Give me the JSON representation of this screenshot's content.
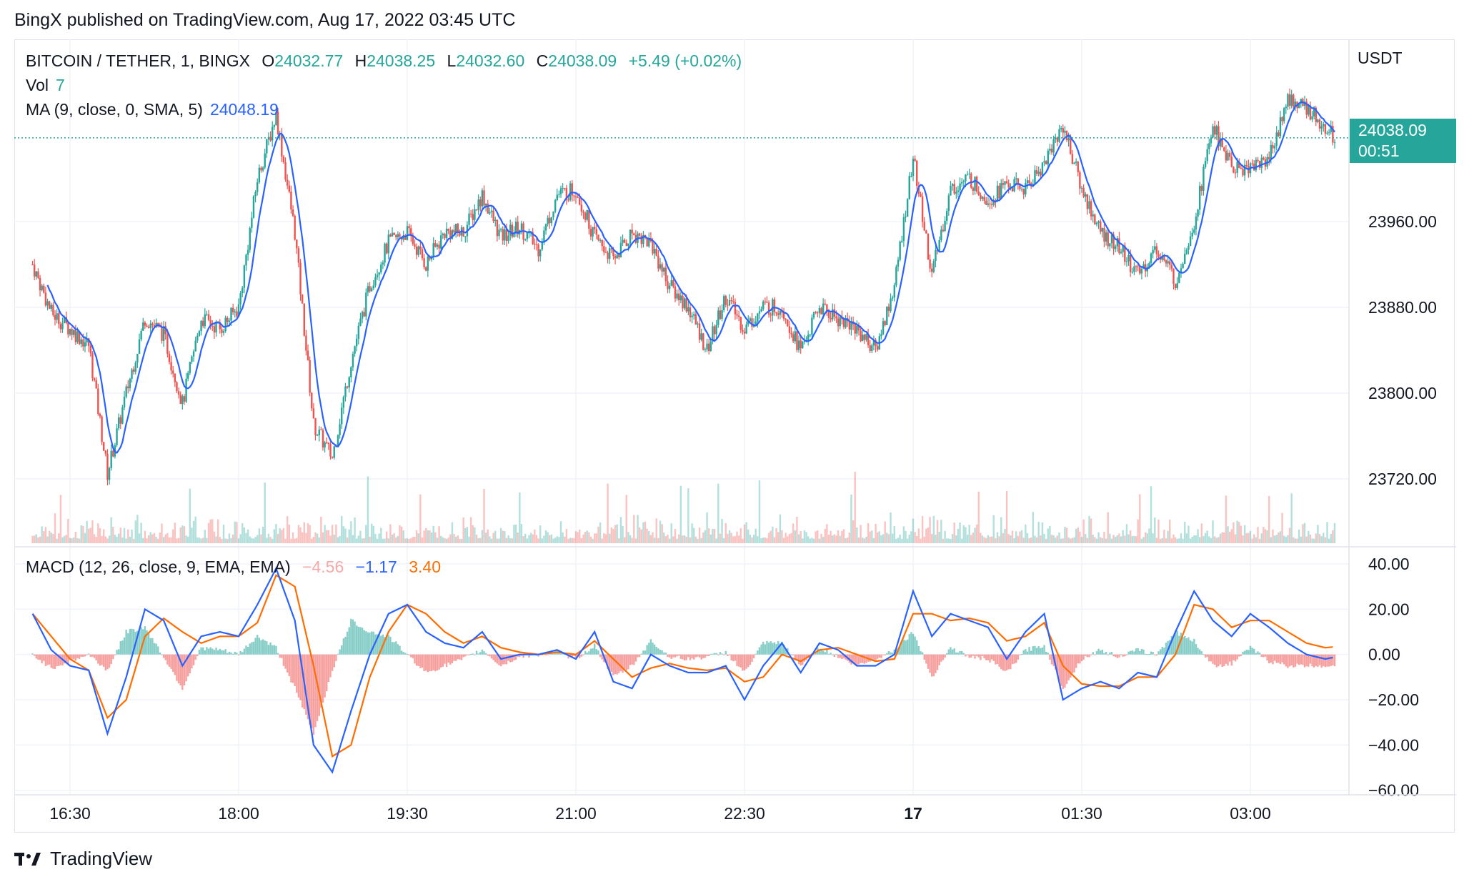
{
  "header": {
    "published": "BingX published on TradingView.com, Aug 17, 2022 03:45 UTC"
  },
  "legend": {
    "symbol": "BITCOIN / TETHER, 1, BINGX",
    "o_label": "O",
    "o_value": "24032.77",
    "h_label": "H",
    "h_value": "24038.25",
    "l_label": "L",
    "l_value": "24032.60",
    "c_label": "C",
    "c_value": "24038.09",
    "change": "+5.49 (+0.02%)",
    "vol_label": "Vol",
    "vol_value": "7",
    "ma_label": "MA (9, close, 0, SMA, 5)",
    "ma_value": "24048.19",
    "macd_label": "MACD (12, 26, close, 9, EMA, EMA)",
    "macd_hist": "−4.56",
    "macd_line": "−1.17",
    "macd_signal": "3.40"
  },
  "price_axis": {
    "unit": "USDT",
    "last_price": "24038.09",
    "countdown": "00:51"
  },
  "footer": {
    "brand": "TradingView"
  },
  "colors": {
    "up": "#26a69a",
    "down": "#ef5350",
    "ma": "#2962ff",
    "macd": "#2962ff",
    "signal": "#ff6d00",
    "grid": "#f0f3fa"
  },
  "chart_data": [
    {
      "type": "candlestick",
      "title": "BITCOIN / TETHER, 1, BINGX",
      "ylim": [
        23660,
        24130
      ],
      "y_ticks": [
        "23720.00",
        "23800.00",
        "23880.00",
        "23960.00"
      ],
      "x_ticks": [
        "16:30",
        "18:00",
        "19:30",
        "21:00",
        "22:30",
        "17",
        "01:30",
        "03:00"
      ],
      "close_path": {
        "x": [
          "16:10",
          "16:20",
          "16:30",
          "16:40",
          "16:50",
          "17:00",
          "17:10",
          "17:20",
          "17:30",
          "17:40",
          "17:50",
          "18:00",
          "18:10",
          "18:20",
          "18:30",
          "18:40",
          "18:50",
          "19:00",
          "19:10",
          "19:20",
          "19:30",
          "19:40",
          "19:50",
          "20:00",
          "20:10",
          "20:20",
          "20:30",
          "20:40",
          "20:50",
          "21:00",
          "21:10",
          "21:20",
          "21:30",
          "21:40",
          "21:50",
          "22:00",
          "22:10",
          "22:20",
          "22:30",
          "22:40",
          "22:50",
          "23:00",
          "23:10",
          "23:20",
          "23:30",
          "23:40",
          "23:50",
          "00:00",
          "00:10",
          "00:20",
          "00:30",
          "00:40",
          "00:50",
          "01:00",
          "01:10",
          "01:20",
          "01:30",
          "01:40",
          "01:50",
          "02:00",
          "02:10",
          "02:20",
          "02:30",
          "02:40",
          "02:50",
          "03:00",
          "03:10",
          "03:20",
          "03:30",
          "03:40",
          "03:45"
        ],
        "values": [
          23920,
          23875,
          23860,
          23845,
          23725,
          23800,
          23870,
          23855,
          23790,
          23870,
          23860,
          23880,
          24000,
          24060,
          23950,
          23770,
          23740,
          23830,
          23900,
          23940,
          23950,
          23920,
          23950,
          23950,
          23985,
          23945,
          23955,
          23935,
          23985,
          23990,
          23945,
          23925,
          23950,
          23940,
          23900,
          23880,
          23840,
          23890,
          23860,
          23880,
          23880,
          23840,
          23880,
          23870,
          23860,
          23840,
          23900,
          24020,
          23910,
          23990,
          24000,
          23980,
          23995,
          23990,
          24015,
          24050,
          23990,
          23950,
          23935,
          23910,
          23935,
          23905,
          23960,
          24050,
          24010,
          24010,
          24020,
          24075,
          24065,
          24050,
          24038.09
        ]
      },
      "ma": {
        "name": "MA (9, close, 0, SMA, 5)",
        "last": 24048.19
      },
      "volume": {
        "name": "Vol",
        "last": 7
      }
    },
    {
      "type": "line",
      "title": "MACD (12, 26, close, 9, EMA, EMA)",
      "ylim": [
        -62,
        46
      ],
      "y_ticks": [
        "40.00",
        "20.00",
        "0.00",
        "−20.00",
        "−40.00",
        "−60.00"
      ],
      "x": [
        "16:10",
        "16:20",
        "16:30",
        "16:40",
        "16:50",
        "17:00",
        "17:10",
        "17:20",
        "17:30",
        "17:40",
        "17:50",
        "18:00",
        "18:10",
        "18:20",
        "18:30",
        "18:40",
        "18:50",
        "19:00",
        "19:10",
        "19:20",
        "19:30",
        "19:40",
        "19:50",
        "20:00",
        "20:10",
        "20:20",
        "20:30",
        "20:40",
        "20:50",
        "21:00",
        "21:10",
        "21:20",
        "21:30",
        "21:40",
        "21:50",
        "22:00",
        "22:10",
        "22:20",
        "22:30",
        "22:40",
        "22:50",
        "23:00",
        "23:10",
        "23:20",
        "23:30",
        "23:40",
        "23:50",
        "00:00",
        "00:10",
        "00:20",
        "00:30",
        "00:40",
        "00:50",
        "01:00",
        "01:10",
        "01:20",
        "01:30",
        "01:40",
        "01:50",
        "02:00",
        "02:10",
        "02:20",
        "02:30",
        "02:40",
        "02:50",
        "03:00",
        "03:10",
        "03:20",
        "03:30",
        "03:40",
        "03:45"
      ],
      "series": [
        {
          "name": "MACD",
          "values": [
            18,
            2,
            -5,
            -7,
            -35,
            -10,
            20,
            15,
            -5,
            8,
            10,
            8,
            22,
            38,
            15,
            -40,
            -52,
            -25,
            0,
            18,
            22,
            10,
            5,
            3,
            10,
            -2,
            0,
            0,
            2,
            -2,
            10,
            -12,
            -15,
            0,
            -5,
            -8,
            -8,
            -5,
            -20,
            -5,
            5,
            -8,
            5,
            2,
            -5,
            -5,
            0,
            28,
            8,
            18,
            15,
            12,
            -2,
            10,
            18,
            -20,
            -15,
            -12,
            -15,
            -8,
            -10,
            10,
            28,
            15,
            8,
            18,
            12,
            5,
            0,
            -2,
            -1.17
          ]
        },
        {
          "name": "Signal",
          "values": [
            18,
            8,
            -2,
            -7,
            -28,
            -20,
            8,
            16,
            10,
            5,
            8,
            8,
            14,
            35,
            30,
            -5,
            -45,
            -40,
            -10,
            10,
            22,
            18,
            10,
            5,
            8,
            3,
            1,
            0,
            1,
            0,
            6,
            -2,
            -10,
            -6,
            -4,
            -6,
            -7,
            -6,
            -12,
            -10,
            0,
            -3,
            2,
            3,
            0,
            -3,
            -2,
            18,
            18,
            15,
            16,
            14,
            6,
            8,
            14,
            -5,
            -13,
            -14,
            -14,
            -10,
            -10,
            0,
            22,
            20,
            12,
            15,
            15,
            10,
            5,
            3,
            3.4
          ]
        },
        {
          "name": "Histogram",
          "values": [
            0,
            -6,
            -3,
            0,
            -7,
            10,
            12,
            -1,
            -15,
            3,
            2,
            0,
            8,
            3,
            -15,
            -35,
            -7,
            15,
            10,
            8,
            0,
            -8,
            -5,
            -2,
            2,
            -5,
            -1,
            0,
            1,
            -2,
            4,
            -10,
            -5,
            6,
            -1,
            -2,
            -1,
            1,
            -8,
            5,
            5,
            -5,
            3,
            -1,
            -5,
            -2,
            2,
            10,
            -10,
            3,
            -1,
            -2,
            -8,
            2,
            4,
            -15,
            -2,
            2,
            -1,
            2,
            0,
            10,
            6,
            -5,
            -4,
            3,
            -3,
            -5,
            -5,
            -5,
            -4.56
          ]
        }
      ]
    }
  ]
}
